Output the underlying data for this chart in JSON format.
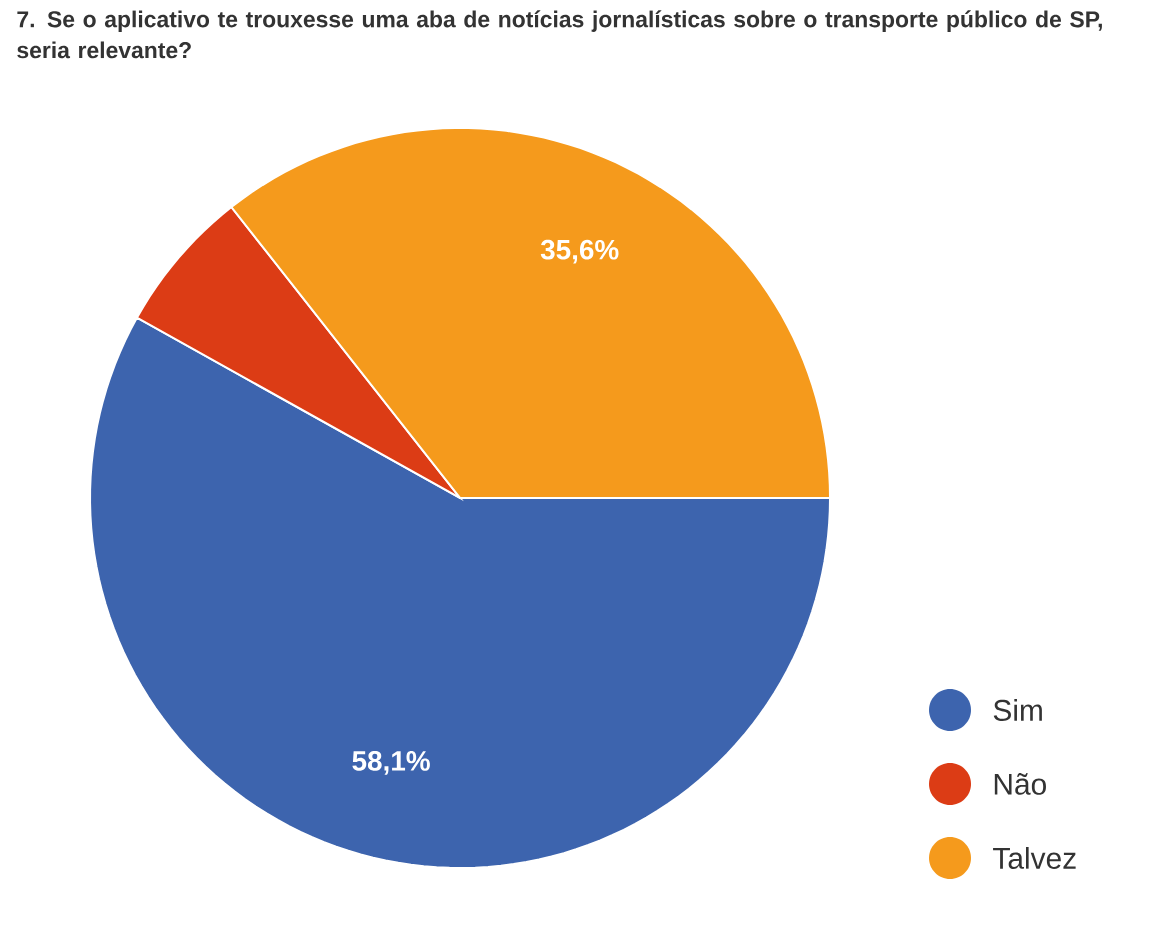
{
  "chart_data": {
    "type": "pie",
    "title": "7. Se o aplicativo te trouxesse uma aba de notícias jornalísticas sobre o transporte público de SP, seria relevante?",
    "categories": [
      "Sim",
      "Não",
      "Talvez"
    ],
    "values": [
      58.1,
      6.3,
      35.6
    ],
    "colors": [
      "#3d64ae",
      "#dc3c15",
      "#f59a1c"
    ],
    "value_labels": [
      "58,1%",
      null,
      "35,6%"
    ],
    "legend": "bottom right"
  }
}
